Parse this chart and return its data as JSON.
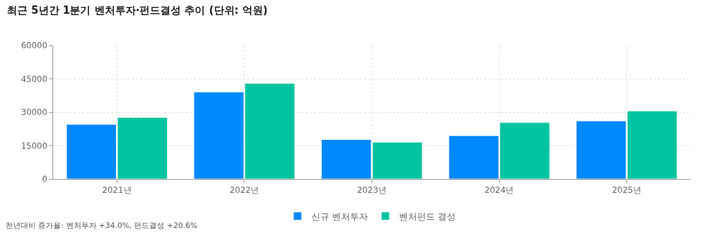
{
  "chart_data": {
    "type": "bar",
    "title": "최근 5년간 1분기 벤처투자·펀드결성 추이 (단위: 억원)",
    "categories": [
      "2021년",
      "2022년",
      "2023년",
      "2024년",
      "2025년"
    ],
    "series": [
      {
        "name": "신규 벤처투자",
        "color": "#0088ff",
        "values": [
          24600,
          39100,
          17800,
          19500,
          26100
        ]
      },
      {
        "name": "벤처펀드 결성",
        "color": "#00c49f",
        "values": [
          27700,
          43000,
          16600,
          25400,
          30600
        ]
      }
    ],
    "ylim": [
      0,
      60000
    ],
    "yticks": [
      0,
      15000,
      30000,
      45000,
      60000
    ],
    "grid": true,
    "legend": "bottom",
    "annotations": [
      "전년대비 증가율: 벤처투자 +34.0%, 펀드결성 +20.6%"
    ]
  }
}
